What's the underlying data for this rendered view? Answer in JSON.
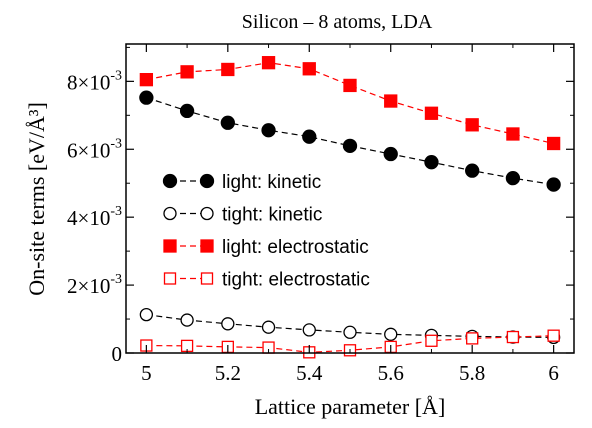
{
  "chart_data": {
    "type": "line",
    "title": "Silicon – 8 atoms, LDA",
    "xlabel": "Lattice parameter [Å]",
    "ylabel": "On-site terms [eV/Å³]",
    "xlim": [
      4.95,
      6.05
    ],
    "ylim": [
      0,
      0.0091
    ],
    "xticks": [
      5,
      5.2,
      5.4,
      5.6,
      5.8,
      6
    ],
    "xtick_labels": [
      "5",
      "5.2",
      "5.4",
      "5.6",
      "5.8",
      "6"
    ],
    "yticks": [
      0,
      0.002,
      0.004,
      0.006,
      0.008
    ],
    "ytick_labels": [
      {
        "mantissa": "0",
        "exp": ""
      },
      {
        "mantissa": "2×10",
        "exp": "-3"
      },
      {
        "mantissa": "4×10",
        "exp": "-3"
      },
      {
        "mantissa": "6×10",
        "exp": "-3"
      },
      {
        "mantissa": "8×10",
        "exp": "-3"
      }
    ],
    "grid": false,
    "legend_position": "center-left",
    "x": [
      5.0,
      5.1,
      5.2,
      5.3,
      5.4,
      5.5,
      5.6,
      5.7,
      5.8,
      5.9,
      6.0
    ],
    "series": [
      {
        "name": "light: kinetic",
        "color": "#000000",
        "marker": "circle",
        "filled": true,
        "values": [
          0.00752,
          0.00713,
          0.00678,
          0.00656,
          0.00637,
          0.0061,
          0.00586,
          0.00562,
          0.00537,
          0.00515,
          0.00496
        ]
      },
      {
        "name": "tight: kinetic",
        "color": "#000000",
        "marker": "circle",
        "filled": false,
        "values": [
          0.00113,
          0.00097,
          0.00086,
          0.00076,
          0.00068,
          0.00061,
          0.00055,
          0.00052,
          0.00049,
          0.00047,
          0.00046
        ]
      },
      {
        "name": "light: electrostatic",
        "color": "#ff0000",
        "marker": "square",
        "filled": true,
        "values": [
          0.00805,
          0.00828,
          0.00835,
          0.00855,
          0.00837,
          0.00788,
          0.00742,
          0.00706,
          0.00672,
          0.00645,
          0.00617
        ]
      },
      {
        "name": "tight: electrostatic",
        "color": "#ff0000",
        "marker": "square",
        "filled": false,
        "values": [
          0.00022,
          0.00021,
          0.00018,
          0.00016,
          2e-05,
          8e-05,
          0.00018,
          0.00036,
          0.00043,
          0.00047,
          0.00051
        ]
      }
    ]
  }
}
